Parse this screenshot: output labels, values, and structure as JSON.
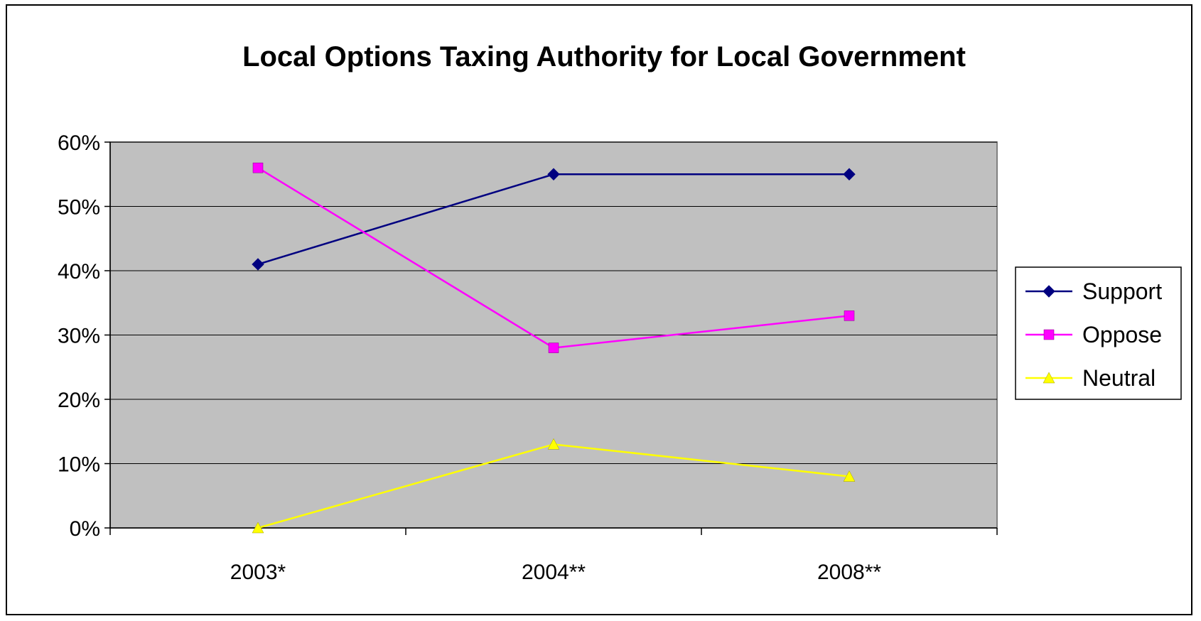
{
  "chart_data": {
    "type": "line",
    "title": "Local Options Taxing Authority for Local Government",
    "categories": [
      "2003*",
      "2004**",
      "2008**"
    ],
    "y_tick_labels": [
      "0%",
      "10%",
      "20%",
      "30%",
      "40%",
      "50%",
      "60%"
    ],
    "ylim": [
      0,
      60
    ],
    "y_unit": "%",
    "grid": true,
    "legend_position": "right",
    "plot_background": "#C0C0C0",
    "series": [
      {
        "name": "Support",
        "values": [
          41,
          55,
          55
        ],
        "color": "#000080",
        "marker": "diamond"
      },
      {
        "name": "Oppose",
        "values": [
          56,
          28,
          33
        ],
        "color": "#FF00FF",
        "marker": "square"
      },
      {
        "name": "Neutral",
        "values": [
          0,
          13,
          8
        ],
        "color": "#FFFF00",
        "marker": "triangle"
      }
    ]
  }
}
